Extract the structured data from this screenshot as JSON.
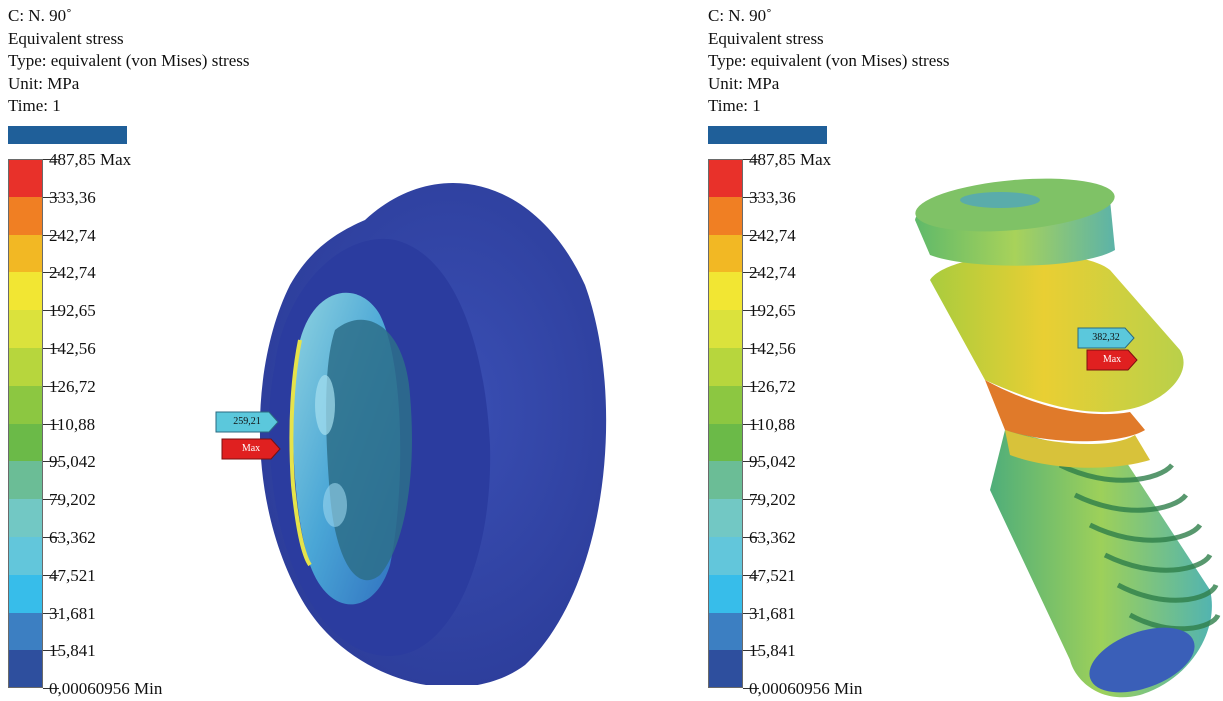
{
  "panels": [
    {
      "header": {
        "line1": "C: N. 90˚",
        "line2": "Equivalent stress",
        "line3": "Type: equivalent (von Mises) stress",
        "line4": "Unit: MPa",
        "line5": "Time: 1"
      },
      "probe_value": "259,21",
      "max_label": "Max"
    },
    {
      "header": {
        "line1": "C: N. 90˚",
        "line2": "Equivalent stress",
        "line3": "Type: equivalent (von Mises) stress",
        "line4": "Unit: MPa",
        "line5": "Time: 1"
      },
      "probe_value": "382,32",
      "max_label": "Max"
    }
  ],
  "legend": {
    "labels": [
      "487,85 Max",
      "333,36",
      "242,74",
      "242,74",
      "192,65",
      "142,56",
      "126,72",
      "110,88",
      "95,042",
      "79,202",
      "63,362",
      "47,521",
      "31,681",
      "15,841",
      "0,00060956 Min"
    ],
    "colors": [
      "#e8312a",
      "#f07f23",
      "#f2b824",
      "#f2e633",
      "#dbe23c",
      "#b7d63d",
      "#8cc741",
      "#6bba48",
      "#6bbd96",
      "#72c8c4",
      "#62c6db",
      "#37bdea",
      "#3c7fc2",
      "#2e4f9e"
    ]
  },
  "colors": {
    "top_bar": "#1f5f99",
    "probe_tag": "#5bc8dc",
    "max_tag": "#e02020"
  }
}
